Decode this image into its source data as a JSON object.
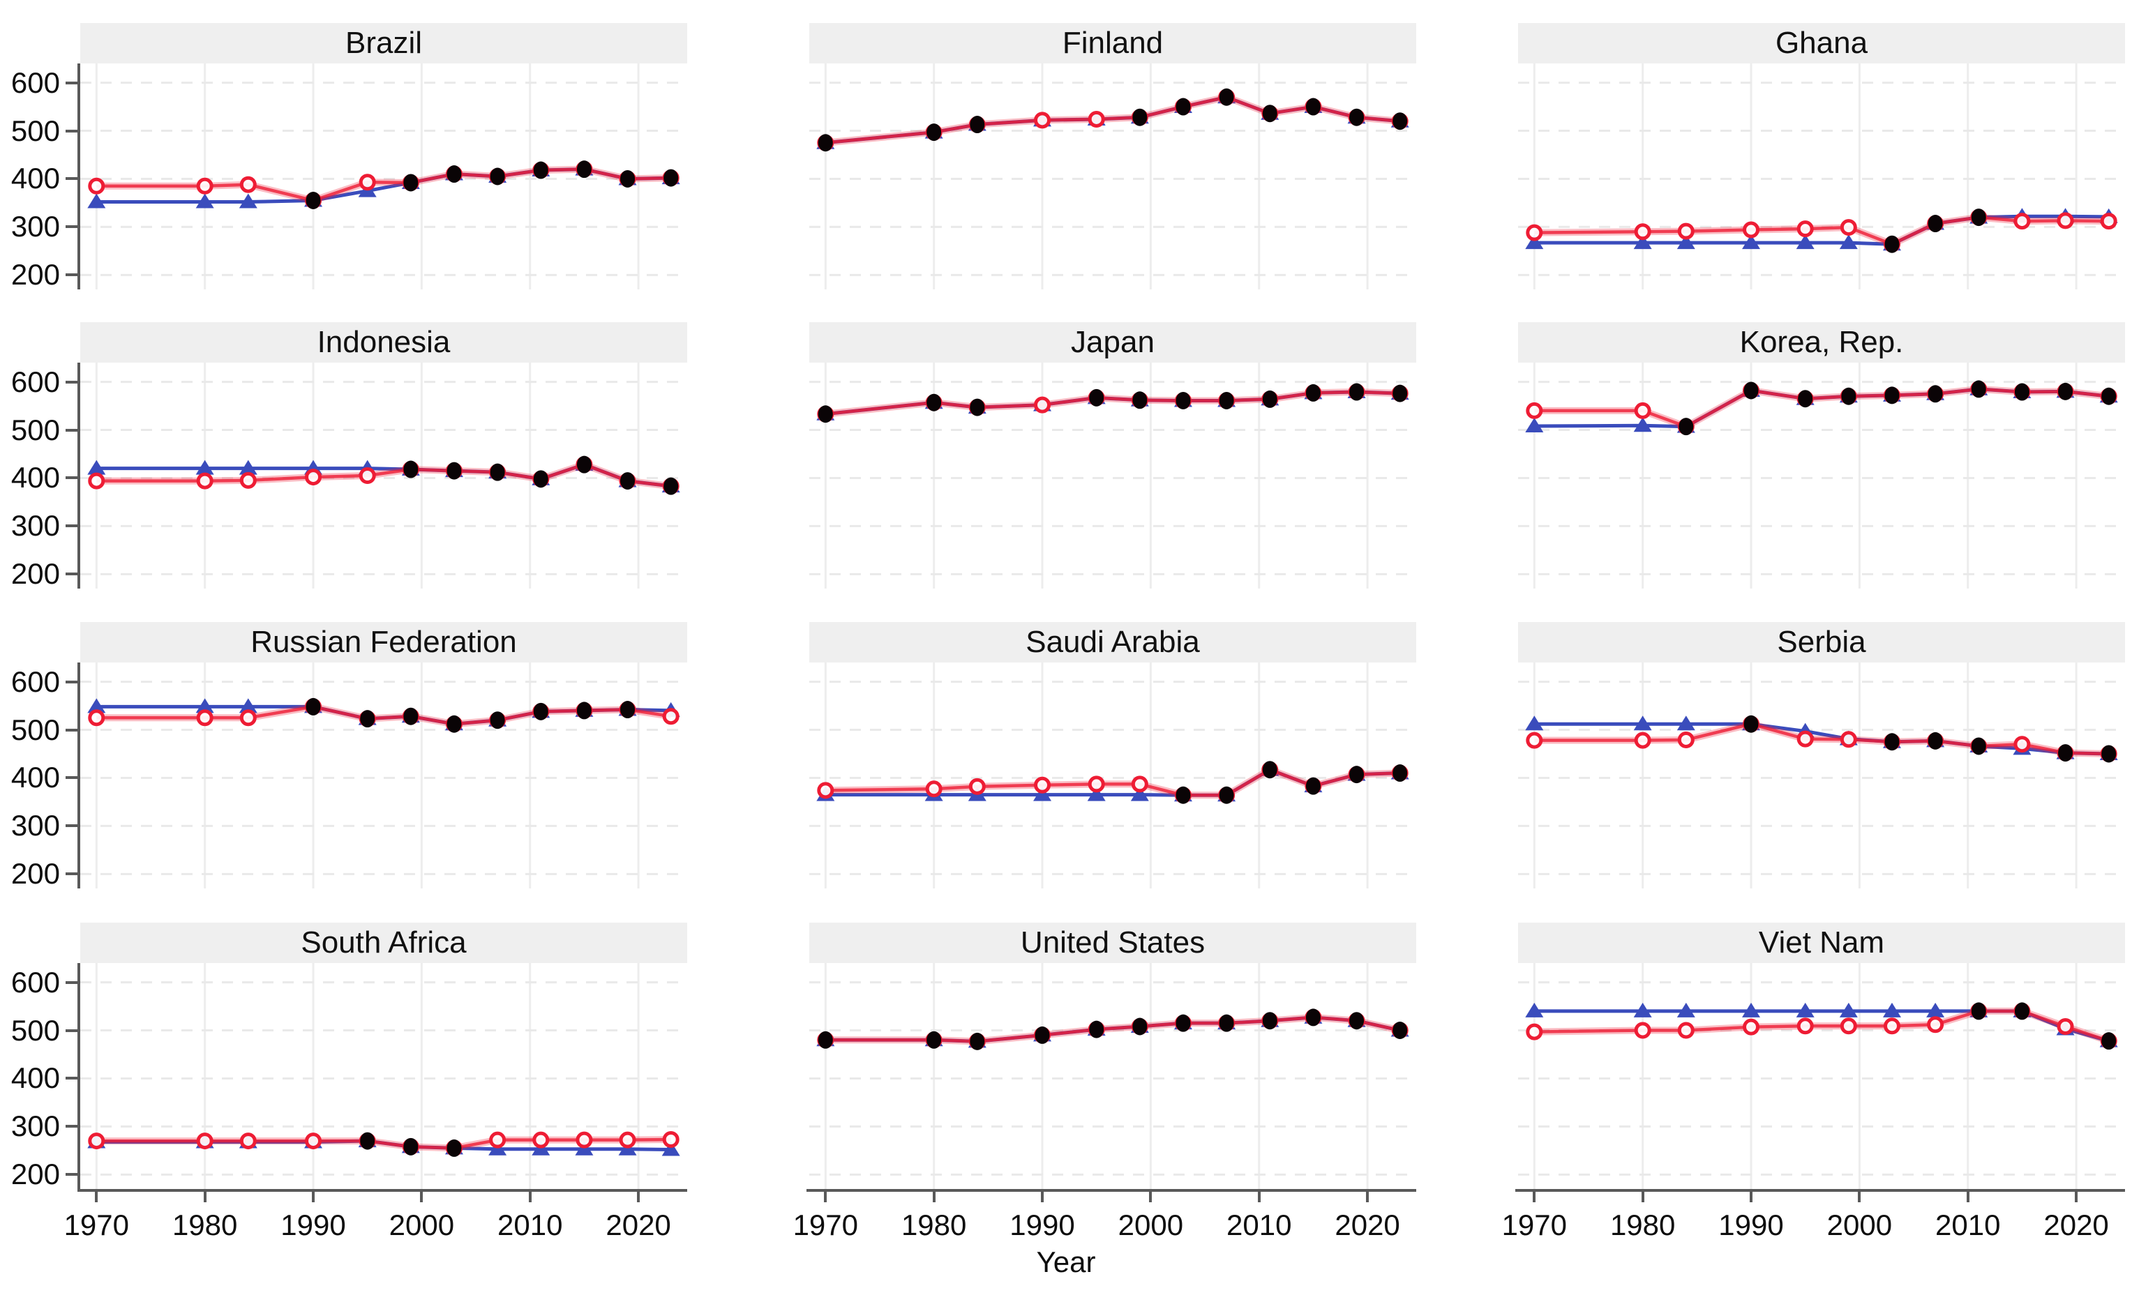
{
  "figure": {
    "xlabel": "Year",
    "y_ticks": [
      600,
      500,
      400,
      300,
      200
    ],
    "x_ticks": [
      1970,
      1980,
      1990,
      2000,
      2010,
      2020
    ],
    "colors": {
      "blue_series": "#3a4cbc",
      "red_series": "#ee1c34",
      "black_series": "#0a0406",
      "title_strip_bg": "#efefef",
      "gridline": "#e9e9e9",
      "axis": "#595959"
    }
  },
  "chart_data": {
    "type": "line",
    "layout": "small-multiples 4 rows x 3 cols",
    "xlabel": "Year",
    "ylim": [
      170,
      640
    ],
    "xlim": [
      1968.5,
      2024.5
    ],
    "x_ticks": [
      1970,
      1980,
      1990,
      2000,
      2010,
      2020
    ],
    "y_ticks": [
      200,
      300,
      400,
      500,
      600
    ],
    "grid": true,
    "legend": "none",
    "years": [
      1970,
      1980,
      1984,
      1990,
      1995,
      1999,
      2003,
      2007,
      2011,
      2015,
      2019,
      2023
    ],
    "series_names": [
      "blue-triangle-line",
      "red-open-circle-line",
      "black-dot-markers"
    ],
    "panels": [
      {
        "title": "Brazil",
        "blue": [
          352,
          352,
          352,
          355,
          375,
          392,
          410,
          405,
          418,
          420,
          400,
          402
        ],
        "red": [
          385,
          385,
          388,
          355,
          393,
          392,
          410,
          405,
          418,
          420,
          400,
          402
        ],
        "black": [
          null,
          null,
          null,
          355,
          null,
          392,
          410,
          405,
          418,
          420,
          400,
          402
        ]
      },
      {
        "title": "Finland",
        "blue": [
          475,
          497,
          513,
          522,
          524,
          528,
          550,
          570,
          536,
          550,
          528,
          520
        ],
        "red": [
          475,
          497,
          513,
          522,
          524,
          528,
          550,
          570,
          536,
          550,
          528,
          520
        ],
        "black": [
          475,
          497,
          513,
          null,
          null,
          528,
          550,
          570,
          536,
          550,
          528,
          520
        ]
      },
      {
        "title": "Ghana",
        "blue": [
          267,
          267,
          267,
          267,
          267,
          267,
          264,
          307,
          320,
          322,
          322,
          321
        ],
        "red": [
          288,
          290,
          291,
          294,
          296,
          299,
          264,
          307,
          320,
          312,
          313,
          312
        ],
        "black": [
          null,
          null,
          null,
          null,
          null,
          null,
          264,
          307,
          320,
          null,
          null,
          null
        ]
      },
      {
        "title": "Indonesia",
        "blue": [
          420,
          420,
          420,
          420,
          420,
          418,
          415,
          412,
          398,
          428,
          394,
          383
        ],
        "red": [
          394,
          394,
          395,
          402,
          405,
          418,
          415,
          412,
          398,
          428,
          394,
          383
        ],
        "black": [
          null,
          null,
          null,
          null,
          null,
          418,
          415,
          412,
          398,
          428,
          394,
          383
        ]
      },
      {
        "title": "Japan",
        "blue": [
          533,
          557,
          547,
          552,
          567,
          562,
          561,
          561,
          564,
          577,
          579,
          576
        ],
        "red": [
          533,
          557,
          547,
          552,
          567,
          562,
          561,
          561,
          564,
          577,
          579,
          576
        ],
        "black": [
          533,
          557,
          547,
          null,
          567,
          562,
          561,
          561,
          564,
          577,
          579,
          576
        ]
      },
      {
        "title": "Korea, Rep.",
        "blue": [
          508,
          509,
          507,
          582,
          565,
          570,
          572,
          575,
          585,
          579,
          580,
          570
        ],
        "red": [
          540,
          540,
          507,
          582,
          565,
          570,
          572,
          575,
          585,
          579,
          580,
          570
        ],
        "black": [
          null,
          null,
          507,
          582,
          565,
          570,
          572,
          575,
          585,
          579,
          580,
          570
        ]
      },
      {
        "title": "Russian Federation",
        "blue": [
          548,
          548,
          548,
          548,
          523,
          528,
          512,
          520,
          538,
          540,
          542,
          540
        ],
        "red": [
          525,
          525,
          525,
          548,
          523,
          528,
          512,
          520,
          538,
          540,
          542,
          528
        ],
        "black": [
          null,
          null,
          null,
          548,
          523,
          528,
          512,
          520,
          538,
          540,
          542,
          null
        ]
      },
      {
        "title": "Saudi Arabia",
        "blue": [
          365,
          365,
          365,
          365,
          365,
          365,
          364,
          364,
          417,
          383,
          407,
          410
        ],
        "red": [
          374,
          377,
          382,
          385,
          387,
          387,
          364,
          364,
          417,
          383,
          407,
          410
        ],
        "black": [
          null,
          null,
          null,
          null,
          null,
          null,
          364,
          364,
          417,
          383,
          407,
          410
        ]
      },
      {
        "title": "Serbia",
        "blue": [
          512,
          512,
          512,
          512,
          497,
          481,
          475,
          477,
          466,
          461,
          452,
          450
        ],
        "red": [
          478,
          478,
          479,
          512,
          481,
          480,
          475,
          477,
          466,
          470,
          452,
          450
        ],
        "black": [
          null,
          null,
          null,
          512,
          null,
          null,
          475,
          477,
          466,
          null,
          452,
          450
        ]
      },
      {
        "title": "South Africa",
        "blue": [
          268,
          268,
          268,
          268,
          270,
          258,
          255,
          253,
          253,
          253,
          253,
          252
        ],
        "red": [
          270,
          270,
          270,
          270,
          270,
          258,
          255,
          272,
          272,
          272,
          272,
          273
        ],
        "black": [
          null,
          null,
          null,
          null,
          270,
          258,
          255,
          null,
          null,
          null,
          null,
          null
        ]
      },
      {
        "title": "United States",
        "blue": [
          480,
          480,
          477,
          490,
          502,
          508,
          515,
          515,
          520,
          527,
          520,
          500
        ],
        "red": [
          480,
          480,
          477,
          490,
          502,
          508,
          515,
          515,
          520,
          527,
          520,
          500
        ],
        "black": [
          480,
          480,
          477,
          490,
          502,
          508,
          515,
          515,
          520,
          527,
          520,
          500
        ]
      },
      {
        "title": "Viet Nam",
        "blue": [
          540,
          540,
          540,
          540,
          540,
          540,
          540,
          540,
          540,
          540,
          503,
          478
        ],
        "red": [
          497,
          500,
          500,
          507,
          509,
          509,
          509,
          512,
          540,
          540,
          508,
          478
        ],
        "black": [
          null,
          null,
          null,
          null,
          null,
          null,
          null,
          null,
          540,
          540,
          null,
          478
        ]
      }
    ]
  }
}
